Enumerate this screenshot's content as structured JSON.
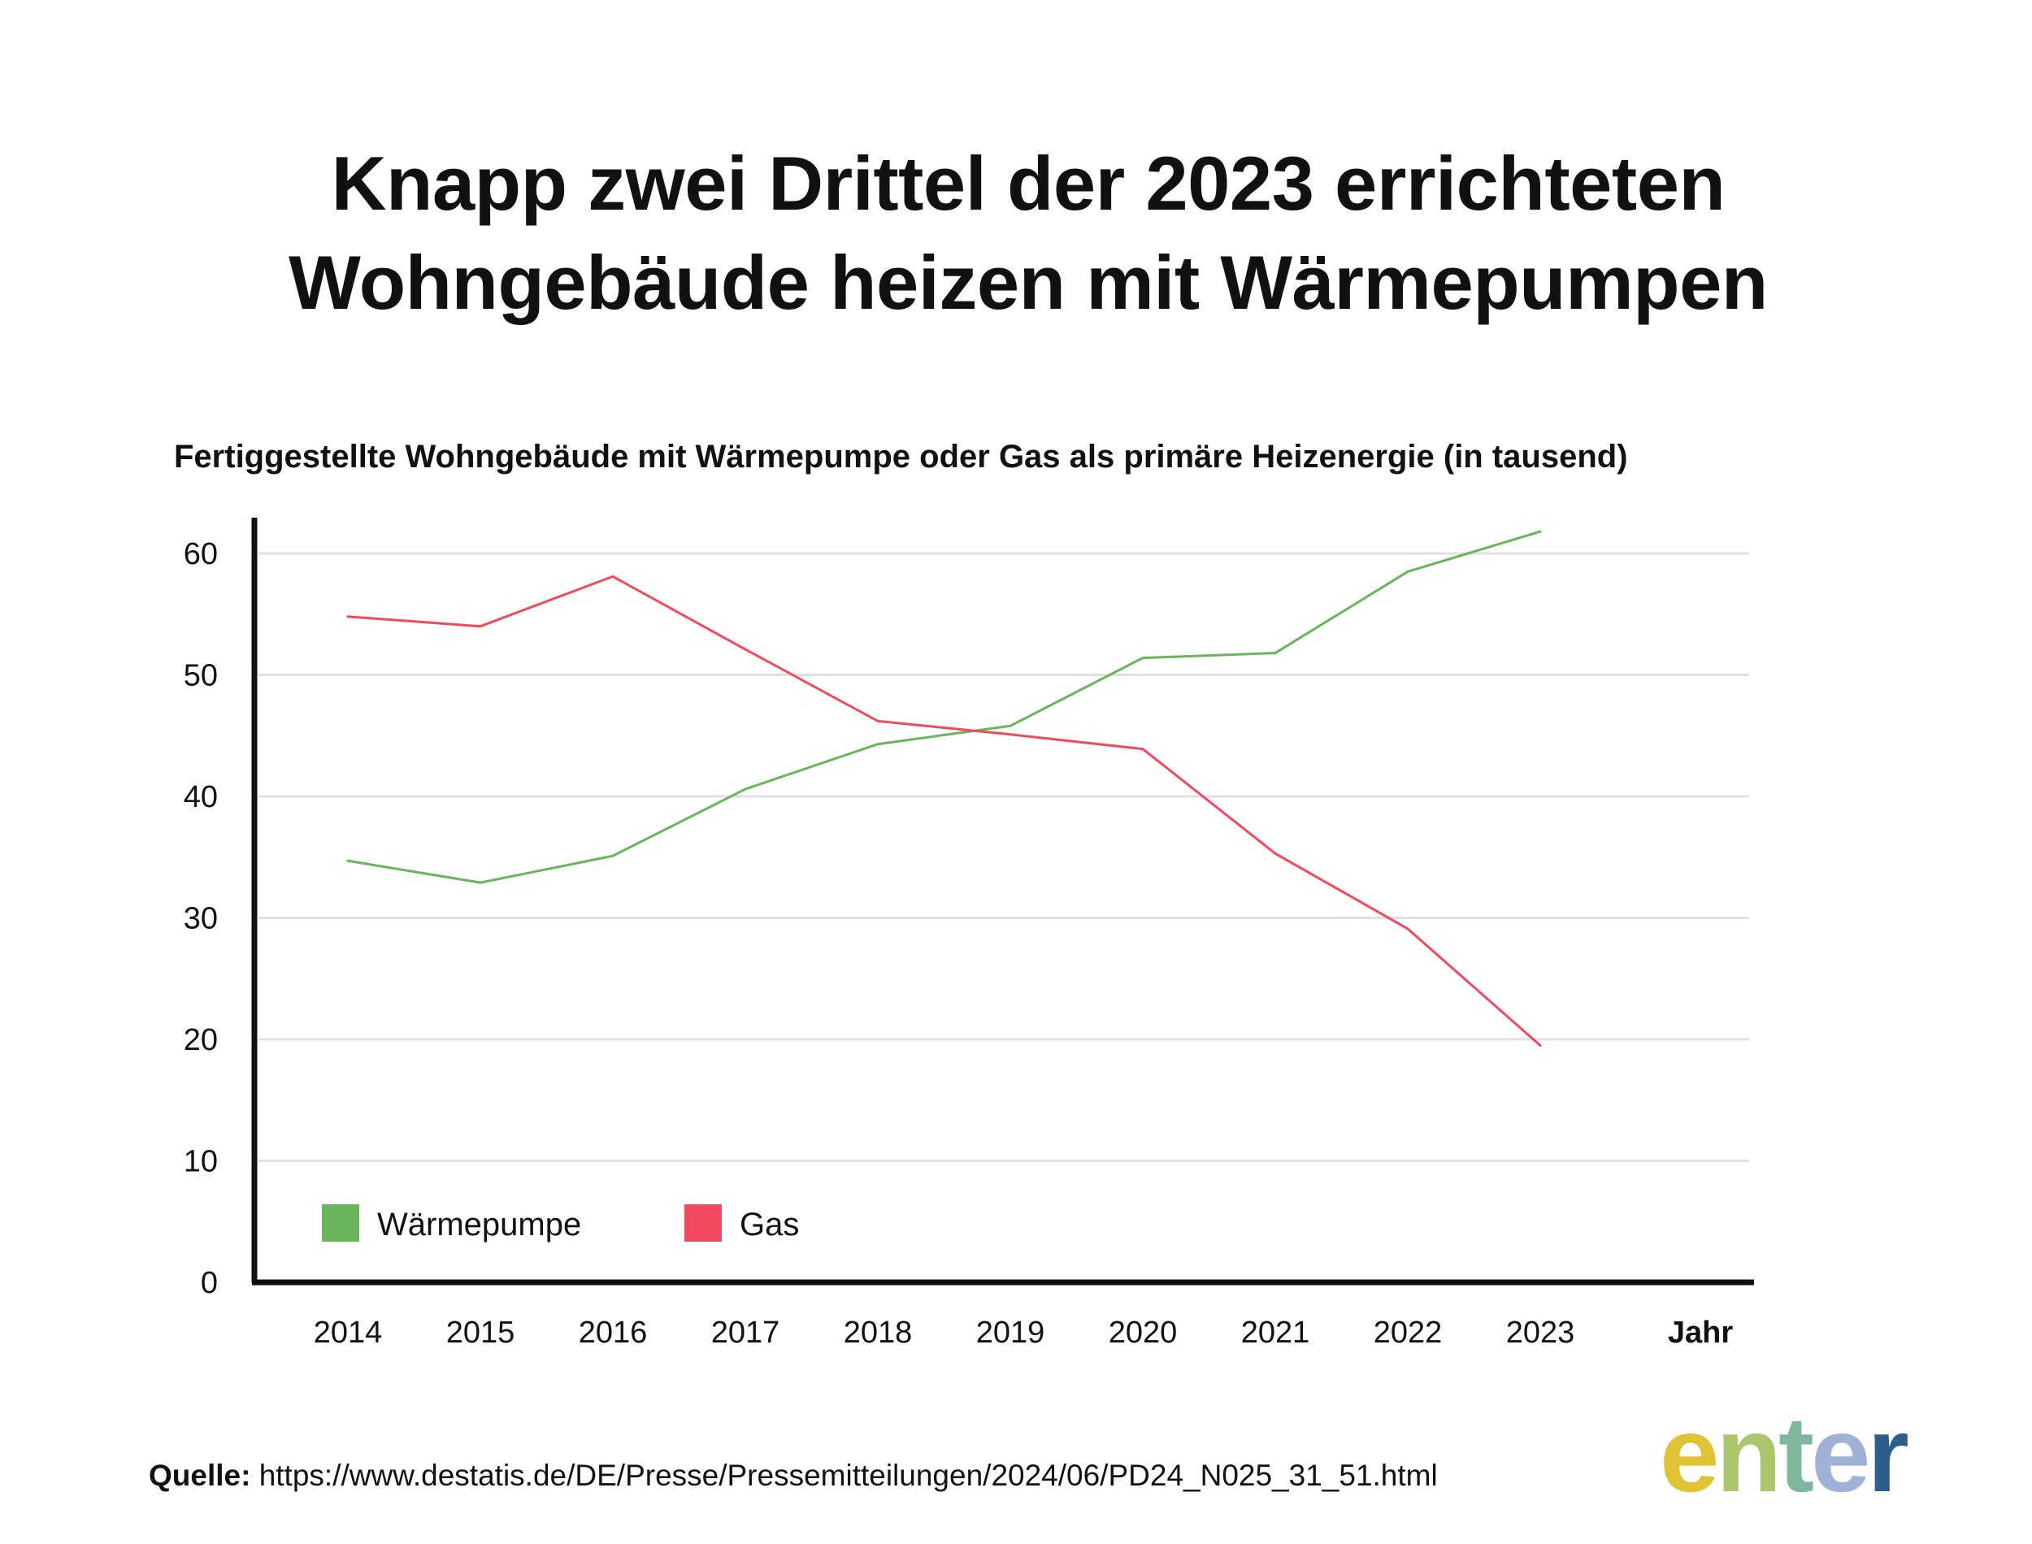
{
  "title_lines": [
    "Knapp zwei Drittel der 2023 errichteten",
    "Wohngebäude heizen mit Wärmepumpen"
  ],
  "subtitle": "Fertiggestellte Wohngebäude mit Wärmepumpe oder Gas als primäre Heizenergie (in tausend)",
  "chart_data": {
    "type": "line",
    "x": [
      "2014",
      "2015",
      "2016",
      "2017",
      "2018",
      "2019",
      "2020",
      "2021",
      "2022",
      "2023"
    ],
    "series": [
      {
        "name": "Wärmepumpe",
        "color": "#6ab55c",
        "values": [
          34.7,
          32.9,
          35.1,
          40.6,
          44.3,
          45.8,
          51.4,
          51.8,
          58.5,
          61.8
        ]
      },
      {
        "name": "Gas",
        "color": "#f14a5e",
        "values": [
          54.8,
          54.0,
          58.1,
          52.1,
          46.2,
          45.1,
          43.9,
          35.3,
          29.1,
          19.5
        ]
      }
    ],
    "yticks": [
      "0",
      "10",
      "20",
      "30",
      "40",
      "50",
      "60"
    ],
    "ylim": [
      0,
      63
    ],
    "xlabel": "Jahr",
    "ylabel": "",
    "grid": true,
    "legend_position": "bottom-left"
  },
  "source": {
    "label": "Quelle:",
    "url": "https://www.destatis.de/DE/Presse/Pressemitteilungen/2024/06/PD24_N025_31_51.html"
  },
  "logo": {
    "letters": [
      "e",
      "n",
      "t",
      "e",
      "r"
    ],
    "colors": [
      "#e0c235",
      "#a9c66a",
      "#7eb79e",
      "#9fb2d5",
      "#2d5e8c"
    ]
  }
}
